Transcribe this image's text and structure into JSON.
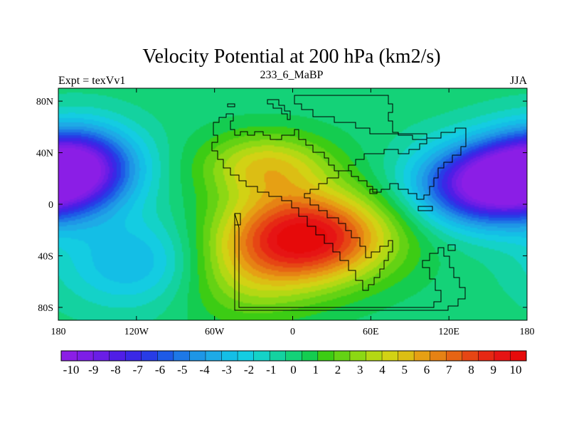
{
  "chart_data": {
    "type": "heatmap",
    "title": "Velocity Potential at 200 hPa (km2/s)",
    "left_label": "Expt = texVv1",
    "center_label": "233_6_MaBP",
    "right_label": "JJA",
    "x_tick_labels": [
      "180",
      "120W",
      "60W",
      "0",
      "60E",
      "120E",
      "180"
    ],
    "x_ticks": [
      -180,
      -120,
      -60,
      0,
      60,
      120,
      180
    ],
    "y_tick_labels": [
      "80N",
      "40N",
      "0",
      "40S",
      "80S"
    ],
    "y_ticks": [
      80,
      40,
      0,
      -40,
      -80
    ],
    "xlim": [
      -180,
      180
    ],
    "ylim": [
      -90,
      90
    ],
    "colorbar": {
      "tick_labels": [
        "-10",
        "-9",
        "-8",
        "-7",
        "-6",
        "-5",
        "-4",
        "-3",
        "-2",
        "-1",
        "0",
        "1",
        "2",
        "3",
        "4",
        "5",
        "6",
        "7",
        "8",
        "9",
        "10"
      ],
      "range": [
        -10.5,
        10.5
      ],
      "colors": [
        "#8b1ee6",
        "#7d1ee6",
        "#6a1ee6",
        "#501ee6",
        "#3a28e6",
        "#283ce6",
        "#1e5ae6",
        "#1e78e6",
        "#1e96e6",
        "#1eaae6",
        "#14bee6",
        "#14cce2",
        "#14d2c8",
        "#14d2a0",
        "#14d278",
        "#14cc50",
        "#3ccc14",
        "#64d214",
        "#8cd814",
        "#b4d814",
        "#d2d214",
        "#dcbe14",
        "#e6a014",
        "#e68214",
        "#e66414",
        "#e64614",
        "#e62814",
        "#e61414",
        "#e60a0a"
      ]
    },
    "features": [
      {
        "name": "positive velocity potential maximum",
        "lon": 10,
        "lat": -25,
        "value": 10.2,
        "sx": 45,
        "sy": 25
      },
      {
        "name": "positive secondary over north Africa",
        "lon": -20,
        "lat": 30,
        "value": 4.5,
        "sx": 35,
        "sy": 18
      },
      {
        "name": "negative minimum over western Pacific",
        "lon": 150,
        "lat": 15,
        "value": -10.4,
        "sx": 38,
        "sy": 22
      },
      {
        "name": "negative minimum over eastern Pacific",
        "lon": -165,
        "lat": 30,
        "value": -8.8,
        "sx": 32,
        "sy": 22
      },
      {
        "name": "southern Pacific trough",
        "lon": -120,
        "lat": -45,
        "value": -3.5,
        "sx": 40,
        "sy": 25
      },
      {
        "name": "south Atlantic ridge",
        "lon": -40,
        "lat": -60,
        "value": 2.5,
        "sx": 40,
        "sy": 25
      }
    ]
  }
}
